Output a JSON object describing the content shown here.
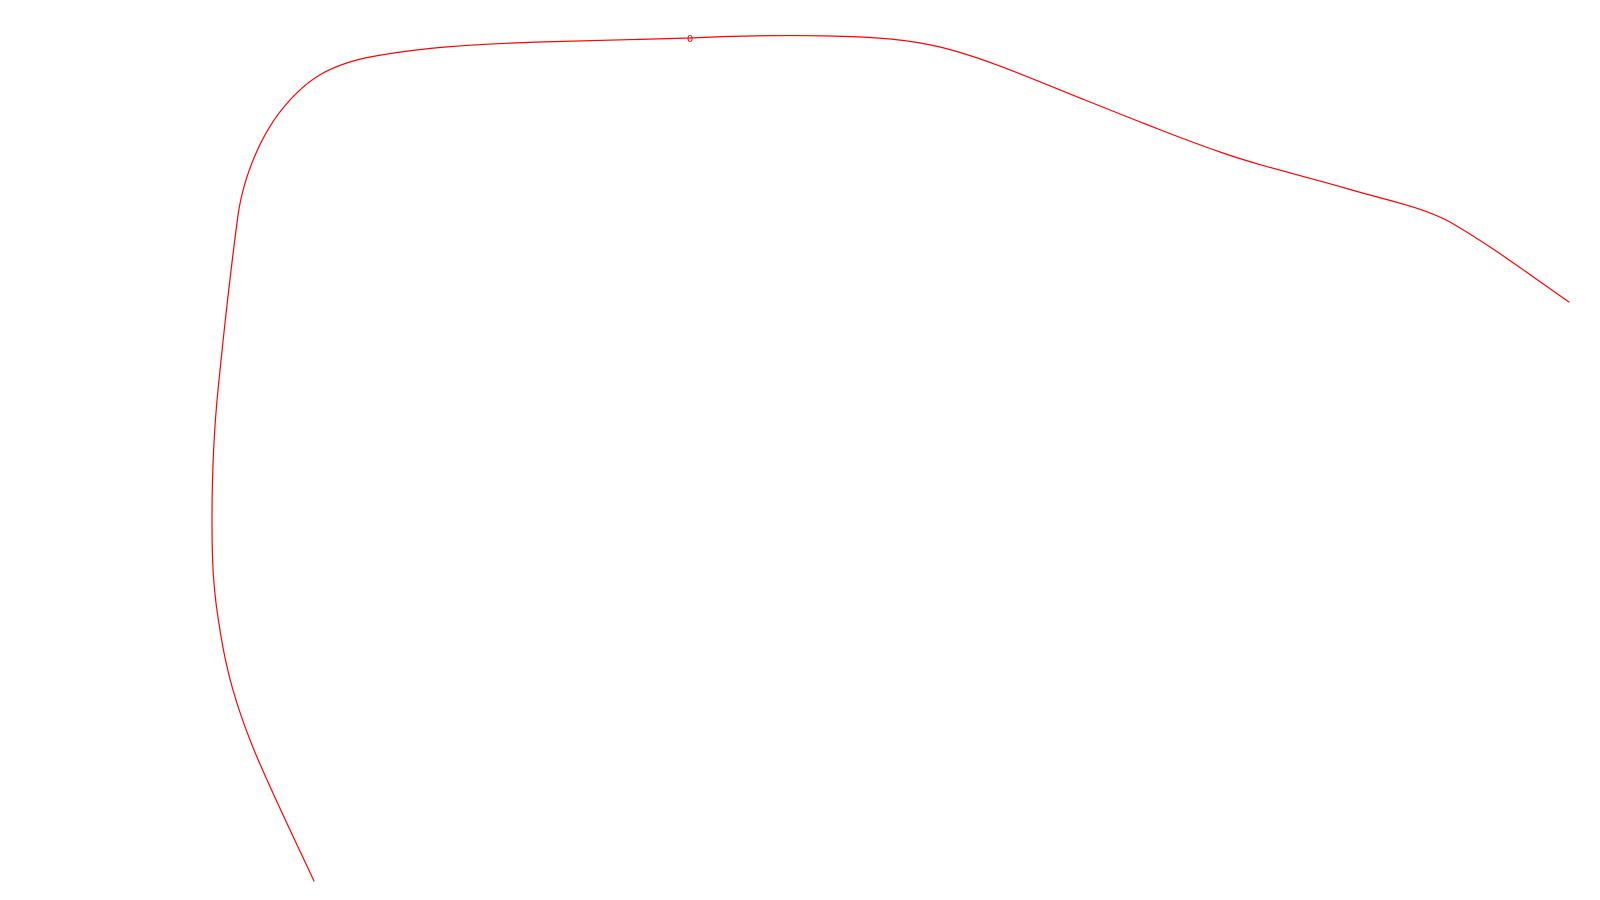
{
  "drawing": {
    "curve": {
      "label": "0",
      "color": "#ff0000"
    }
  }
}
